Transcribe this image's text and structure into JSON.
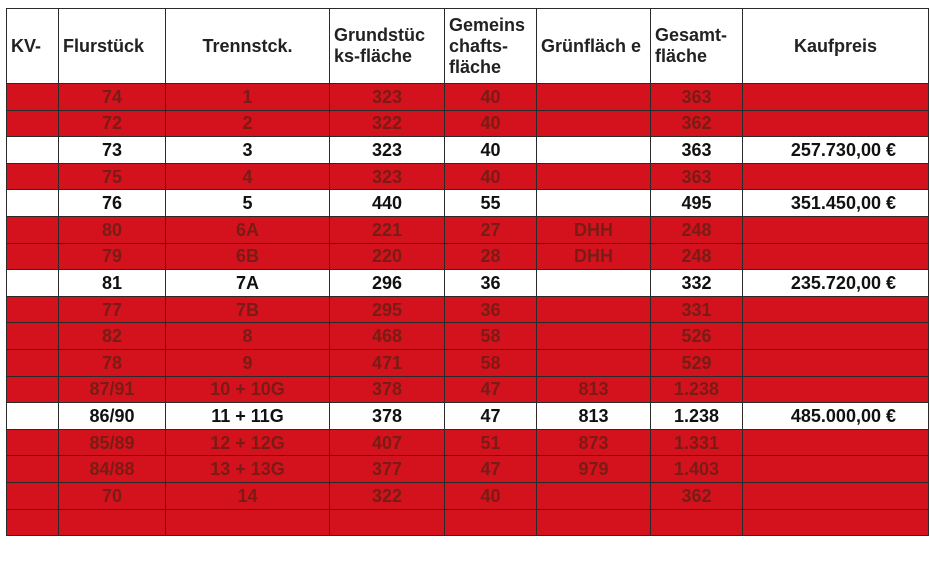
{
  "headers": [
    "KV-",
    "Flurstück",
    "Trennstck.",
    "Grundstüc ks-fläche",
    "Gemeins chafts-fläche",
    "Grünfläch e",
    "Gesamt-fläche",
    "Kaufpreis"
  ],
  "rows": [
    {
      "status": "sold",
      "cells": [
        "",
        "74",
        "1",
        "323",
        "40",
        "",
        "363",
        ""
      ]
    },
    {
      "status": "sold",
      "cells": [
        "",
        "72",
        "2",
        "322",
        "40",
        "",
        "362",
        ""
      ]
    },
    {
      "status": "open",
      "cells": [
        "",
        "73",
        "3",
        "323",
        "40",
        "",
        "363",
        "257.730,00 €"
      ]
    },
    {
      "status": "sold",
      "cells": [
        "",
        "75",
        "4",
        "323",
        "40",
        "",
        "363",
        ""
      ]
    },
    {
      "status": "open",
      "cells": [
        "",
        "76",
        "5",
        "440",
        "55",
        "",
        "495",
        "351.450,00 €"
      ]
    },
    {
      "status": "sold",
      "cells": [
        "",
        "80",
        "6A",
        "221",
        "27",
        "DHH",
        "248",
        ""
      ]
    },
    {
      "status": "sold",
      "cells": [
        "",
        "79",
        "6B",
        "220",
        "28",
        "DHH",
        "248",
        ""
      ]
    },
    {
      "status": "open",
      "cells": [
        "",
        "81",
        "7A",
        "296",
        "36",
        "",
        "332",
        "235.720,00 €"
      ]
    },
    {
      "status": "sold",
      "cells": [
        "",
        "77",
        "7B",
        "295",
        "36",
        "",
        "331",
        ""
      ]
    },
    {
      "status": "sold",
      "cells": [
        "",
        "82",
        "8",
        "468",
        "58",
        "",
        "526",
        ""
      ]
    },
    {
      "status": "sold",
      "cells": [
        "",
        "78",
        "9",
        "471",
        "58",
        "",
        "529",
        ""
      ]
    },
    {
      "status": "sold",
      "cells": [
        "",
        "87/91",
        "10 + 10G",
        "378",
        "47",
        "813",
        "1.238",
        ""
      ]
    },
    {
      "status": "open",
      "cells": [
        "",
        "86/90",
        "11 + 11G",
        "378",
        "47",
        "813",
        "1.238",
        "485.000,00 €"
      ]
    },
    {
      "status": "sold",
      "cells": [
        "",
        "85/89",
        "12 + 12G",
        "407",
        "51",
        "873",
        "1.331",
        ""
      ]
    },
    {
      "status": "sold",
      "cells": [
        "",
        "84/88",
        "13 + 13G",
        "377",
        "47",
        "979",
        "1.403",
        ""
      ]
    },
    {
      "status": "sold",
      "cells": [
        "",
        "70",
        "14",
        "322",
        "40",
        "",
        "362",
        ""
      ]
    },
    {
      "status": "sold",
      "cells": [
        "",
        "",
        "",
        "",
        "",
        "",
        "",
        ""
      ]
    }
  ],
  "colors": {
    "sold_fill": "#d3121d",
    "sold_text": "#7a1c15",
    "open_fill": "#ffffff",
    "open_text": "#111111"
  }
}
